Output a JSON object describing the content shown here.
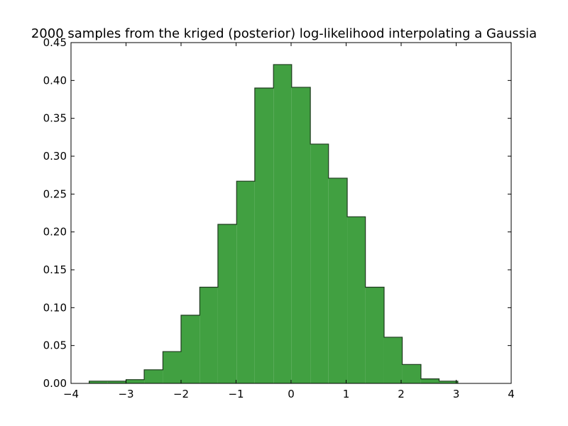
{
  "chart_data": {
    "type": "bar",
    "title": "2000 samples from the kriged (posterior) log-likelihood interpolating a Gaussia",
    "xlabel": "",
    "ylabel": "",
    "xlim": [
      -4,
      4
    ],
    "ylim": [
      0,
      0.45
    ],
    "x_ticks": [
      -4,
      -3,
      -2,
      -1,
      0,
      1,
      2,
      3,
      4
    ],
    "x_tick_labels": [
      "−4",
      "−3",
      "−2",
      "−1",
      "0",
      "1",
      "2",
      "3",
      "4"
    ],
    "y_ticks": [
      0,
      0.05,
      0.1,
      0.15,
      0.2,
      0.25,
      0.3,
      0.35,
      0.4,
      0.45
    ],
    "y_tick_labels": [
      "0.00",
      "0.05",
      "0.10",
      "0.15",
      "0.20",
      "0.25",
      "0.30",
      "0.35",
      "0.40",
      "0.45"
    ],
    "bin_edges": [
      -3.67,
      -3.34,
      -3.0,
      -2.67,
      -2.33,
      -2.0,
      -1.66,
      -1.33,
      -0.99,
      -0.66,
      -0.32,
      0.01,
      0.35,
      0.68,
      1.02,
      1.35,
      1.69,
      2.02,
      2.36,
      2.69,
      3.03
    ],
    "values": [
      0.003,
      0.003,
      0.005,
      0.018,
      0.042,
      0.09,
      0.127,
      0.21,
      0.267,
      0.39,
      0.421,
      0.391,
      0.316,
      0.271,
      0.22,
      0.127,
      0.061,
      0.025,
      0.006,
      0.003
    ],
    "fill_color": "#41a041",
    "edge_color": "#1e3a1e",
    "histtype": "stepfilled",
    "grid": false,
    "legend": "none"
  }
}
